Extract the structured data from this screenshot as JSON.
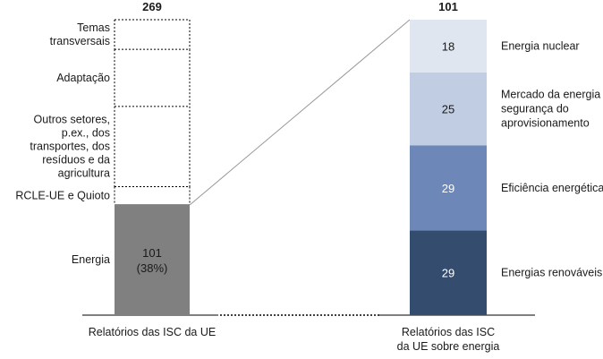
{
  "chart_data": {
    "type": "bar",
    "subtype": "stacked-bar-of-bar",
    "bars": [
      {
        "label": "Relatórios das ISC da UE",
        "total": 269,
        "segments": [
          {
            "name": "Energia",
            "value": 101,
            "value_label": "101",
            "share_label": "(38%)",
            "color": "#808080",
            "filled": true
          },
          {
            "name": "RCLE-UE e Quioto",
            "value": 16,
            "filled": false
          },
          {
            "name": "Outros setores, p.ex., dos transportes, dos resíduos e da agricultura",
            "value": 73,
            "filled": false
          },
          {
            "name": "Adaptação",
            "value": 52,
            "filled": false
          },
          {
            "name": "Temas transversais",
            "value": 27,
            "filled": false
          }
        ]
      },
      {
        "label": "Relatórios das ISC da UE sobre energia",
        "total": 101,
        "segments": [
          {
            "name": "Energias renováveis",
            "value": 29,
            "color": "#344d6e"
          },
          {
            "name": "Eficiência energética",
            "value": 29,
            "color": "#6d88b8"
          },
          {
            "name": "Mercado da energia e segurança do aprovisionamento",
            "value": 25,
            "color": "#c0cde2"
          },
          {
            "name": "Energia nuclear",
            "value": 18,
            "color": "#dfe6f0"
          }
        ]
      }
    ],
    "legend": "labels-beside-segments",
    "grid": false
  }
}
